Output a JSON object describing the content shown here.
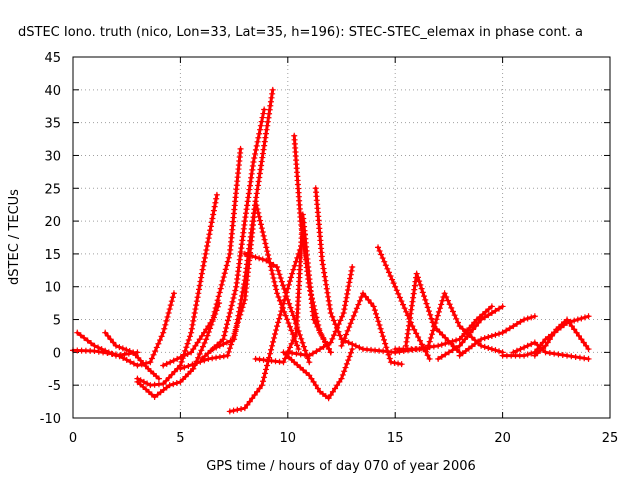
{
  "chart_data": {
    "type": "scatter",
    "title": "dSTEC Iono. truth (nico, Lon=33, Lat=35, h=196): STEC-STEC_elemax in phase cont. a",
    "xlabel": "GPS time / hours of day 070 of year 2006",
    "ylabel": "dSTEC  / TECUs",
    "xlim": [
      0,
      25
    ],
    "ylim": [
      -10,
      45
    ],
    "xticks": [
      "0",
      "5",
      "10",
      "15",
      "20",
      "25"
    ],
    "yticks": [
      "-10",
      "-5",
      "0",
      "5",
      "10",
      "15",
      "20",
      "25",
      "30",
      "35",
      "40",
      "45"
    ],
    "grid": true,
    "marker": "+",
    "colors": {
      "series": "#ff0000",
      "grid": "#a0a0a0"
    },
    "series": [
      {
        "x": [
          0.0,
          1.0,
          2.0,
          3.0,
          3.6,
          4.2,
          4.7
        ],
        "y": [
          0.3,
          0.2,
          -0.3,
          -2.0,
          -1.5,
          3.0,
          9.0
        ]
      },
      {
        "x": [
          3.0,
          3.6,
          4.2,
          5.0,
          5.5,
          6.0,
          6.7
        ],
        "y": [
          -4.0,
          -5.0,
          -4.8,
          -2.0,
          3.0,
          12.0,
          24.0
        ]
      },
      {
        "x": [
          3.0,
          3.8,
          4.5,
          5.0,
          5.6,
          6.2,
          6.8
        ],
        "y": [
          -4.5,
          -6.8,
          -5.0,
          -4.5,
          -2.5,
          2.0,
          7.5
        ]
      },
      {
        "x": [
          4.2,
          5.5,
          6.5,
          7.3,
          7.8
        ],
        "y": [
          -2.0,
          0.0,
          5.0,
          15.0,
          31.0
        ]
      },
      {
        "x": [
          6.0,
          7.0,
          7.6,
          8.0,
          8.4,
          8.9
        ],
        "y": [
          -1.0,
          2.0,
          10.0,
          20.0,
          29.0,
          37.0
        ]
      },
      {
        "x": [
          6.5,
          7.5,
          8.0,
          8.5,
          9.3
        ],
        "y": [
          0.5,
          2.0,
          11.0,
          23.0,
          40.0
        ]
      },
      {
        "x": [
          7.3,
          8.0,
          8.8,
          9.5,
          10.2,
          10.8
        ],
        "y": [
          -9.0,
          -8.5,
          -5.0,
          4.0,
          12.0,
          18.0
        ]
      },
      {
        "x": [
          5.0,
          6.3,
          7.2,
          8.0,
          8.5,
          9.5,
          10.5
        ],
        "y": [
          -2.5,
          -1.0,
          -0.5,
          8.0,
          23.0,
          9.0,
          0.5
        ]
      },
      {
        "x": [
          8.0,
          9.0,
          9.5,
          10.0,
          11.0
        ],
        "y": [
          15.0,
          14.0,
          13.0,
          8.0,
          -1.5
        ]
      },
      {
        "x": [
          8.5,
          9.8,
          10.4,
          10.7,
          11.2,
          12.0
        ],
        "y": [
          -1.0,
          -1.5,
          3.0,
          21.0,
          5.0,
          0.0
        ]
      },
      {
        "x": [
          10.3,
          10.6,
          11.0,
          11.5,
          12.0
        ],
        "y": [
          33.0,
          20.0,
          10.0,
          3.0,
          0.0
        ]
      },
      {
        "x": [
          11.3,
          11.6,
          12.0,
          12.5,
          13.5,
          15.0
        ],
        "y": [
          25.0,
          14.0,
          6.0,
          2.0,
          0.5,
          0.0
        ]
      },
      {
        "x": [
          9.8,
          10.3,
          11.0,
          11.5,
          11.9,
          12.5,
          13.0
        ],
        "y": [
          0.0,
          -1.5,
          -3.5,
          -6.0,
          -7.0,
          -4.0,
          0.5
        ]
      },
      {
        "x": [
          10.0,
          11.0,
          12.0,
          12.6,
          13.0
        ],
        "y": [
          0.0,
          -0.5,
          1.5,
          6.0,
          13.0
        ]
      },
      {
        "x": [
          12.5,
          13.0,
          13.5,
          14.0,
          14.8,
          15.3
        ],
        "y": [
          1.0,
          5.0,
          9.0,
          7.0,
          -1.5,
          -1.8
        ]
      },
      {
        "x": [
          14.2,
          15.0,
          15.8,
          16.6
        ],
        "y": [
          16.0,
          10.0,
          4.0,
          -1.0
        ]
      },
      {
        "x": [
          15.5,
          16.0,
          16.8,
          18.0
        ],
        "y": [
          1.0,
          12.0,
          4.0,
          0.0
        ]
      },
      {
        "x": [
          15.0,
          16.0,
          17.0,
          18.0,
          18.8,
          19.5
        ],
        "y": [
          0.0,
          0.5,
          1.0,
          2.0,
          5.0,
          7.0
        ]
      },
      {
        "x": [
          17.0,
          17.5,
          18.0,
          19.0,
          20.0
        ],
        "y": [
          -1.0,
          0.0,
          1.0,
          5.0,
          7.0
        ]
      },
      {
        "x": [
          15.0,
          16.5,
          17.3,
          18.0,
          19.0,
          20.0
        ],
        "y": [
          0.5,
          0.5,
          9.0,
          4.0,
          1.0,
          0.0
        ]
      },
      {
        "x": [
          18.0,
          19.0,
          20.0,
          21.0,
          21.5
        ],
        "y": [
          -0.5,
          2.0,
          3.0,
          5.0,
          5.5
        ]
      },
      {
        "x": [
          20.0,
          21.0,
          21.5,
          22.0,
          23.0,
          24.0
        ],
        "y": [
          -0.5,
          -0.5,
          0.0,
          2.0,
          4.5,
          5.5
        ]
      },
      {
        "x": [
          21.5,
          22.0,
          22.5,
          23.0,
          24.0
        ],
        "y": [
          -0.5,
          1.0,
          3.5,
          5.0,
          0.5
        ]
      },
      {
        "x": [
          20.5,
          21.5,
          22.0,
          23.0,
          24.0
        ],
        "y": [
          0.0,
          1.5,
          0.0,
          -0.5,
          -1.0
        ]
      },
      {
        "x": [
          0.2,
          1.0,
          2.0,
          3.0
        ],
        "y": [
          3.0,
          1.0,
          -0.5,
          0.0
        ]
      },
      {
        "x": [
          1.5,
          2.0,
          2.8,
          3.5,
          4.0
        ],
        "y": [
          3.0,
          1.0,
          0.0,
          -2.5,
          -4.0
        ]
      }
    ]
  }
}
